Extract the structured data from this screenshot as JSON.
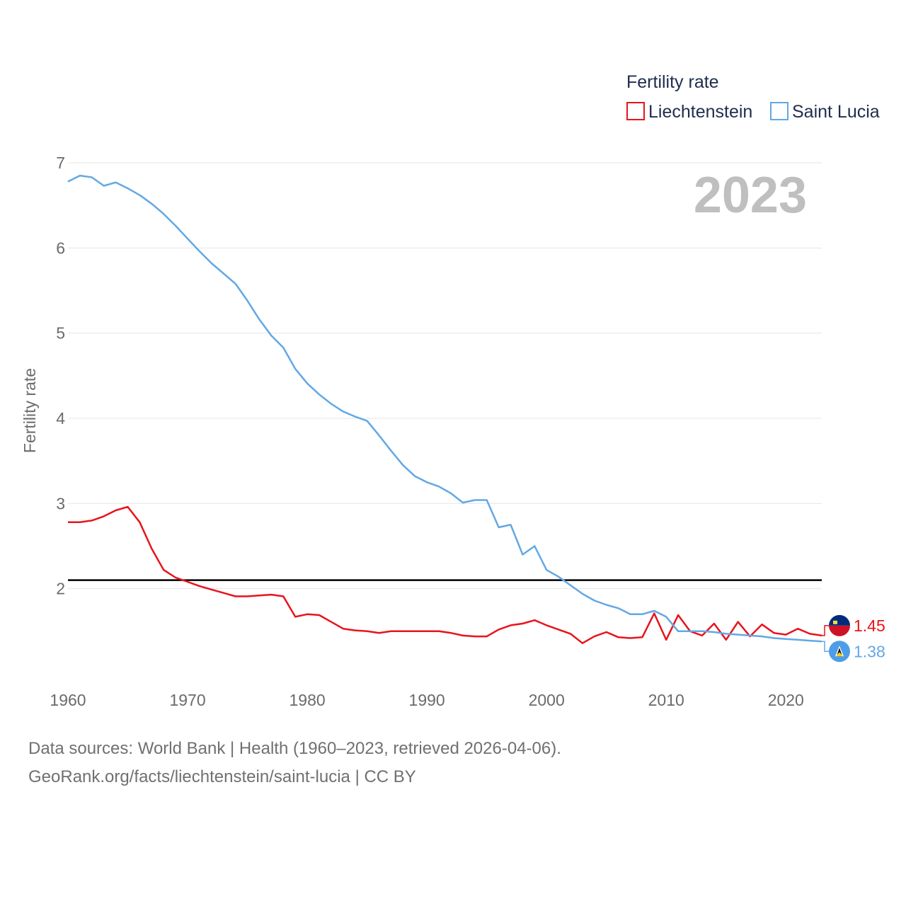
{
  "chart_data": {
    "type": "line",
    "title": "",
    "xlabel": "",
    "ylabel": "Fertility rate",
    "xlim": [
      1960,
      2023
    ],
    "ylim": [
      1.0,
      7.0
    ],
    "year_label": "2023",
    "legend": {
      "title": "Fertility rate",
      "entries": [
        {
          "name": "Liechtenstein",
          "color": "#e8141b"
        },
        {
          "name": "Saint Lucia",
          "color": "#62a8e5"
        }
      ],
      "placement": "top-right"
    },
    "x_ticks": [
      1960,
      1970,
      1980,
      1990,
      2000,
      2010,
      2020
    ],
    "x_tick_labels": [
      "1960",
      "1970",
      "1980",
      "1990",
      "2000",
      "2010",
      "2020"
    ],
    "y_ticks": [
      2,
      3,
      4,
      5,
      6,
      7
    ],
    "y_tick_labels": [
      "2",
      "3",
      "4",
      "5",
      "6",
      "7"
    ],
    "reference_line": {
      "value": 2.1,
      "color": "#000000"
    },
    "x": [
      1960,
      1961,
      1962,
      1963,
      1964,
      1965,
      1966,
      1967,
      1968,
      1969,
      1970,
      1971,
      1972,
      1973,
      1974,
      1975,
      1976,
      1977,
      1978,
      1979,
      1980,
      1981,
      1982,
      1983,
      1984,
      1985,
      1986,
      1987,
      1988,
      1989,
      1990,
      1991,
      1992,
      1993,
      1994,
      1995,
      1996,
      1997,
      1998,
      1999,
      2000,
      2001,
      2002,
      2003,
      2004,
      2005,
      2006,
      2007,
      2008,
      2009,
      2010,
      2011,
      2012,
      2013,
      2014,
      2015,
      2016,
      2017,
      2018,
      2019,
      2020,
      2021,
      2022,
      2023
    ],
    "series": [
      {
        "name": "Liechtenstein",
        "color": "#e8141b",
        "end_label": "1.45",
        "values": [
          2.78,
          2.78,
          2.8,
          2.85,
          2.92,
          2.96,
          2.78,
          2.47,
          2.22,
          2.13,
          2.08,
          2.03,
          1.99,
          1.95,
          1.91,
          1.91,
          1.92,
          1.93,
          1.91,
          1.67,
          1.7,
          1.69,
          1.61,
          1.53,
          1.51,
          1.5,
          1.48,
          1.5,
          1.5,
          1.5,
          1.5,
          1.5,
          1.48,
          1.45,
          1.44,
          1.44,
          1.52,
          1.57,
          1.59,
          1.63,
          1.57,
          1.52,
          1.47,
          1.36,
          1.44,
          1.49,
          1.43,
          1.42,
          1.43,
          1.71,
          1.4,
          1.69,
          1.5,
          1.45,
          1.59,
          1.4,
          1.61,
          1.44,
          1.58,
          1.48,
          1.46,
          1.53,
          1.47,
          1.45
        ]
      },
      {
        "name": "Saint Lucia",
        "color": "#62a8e5",
        "end_label": "1.38",
        "values": [
          6.78,
          6.85,
          6.83,
          6.73,
          6.77,
          6.7,
          6.62,
          6.52,
          6.4,
          6.26,
          6.11,
          5.96,
          5.82,
          5.7,
          5.58,
          5.38,
          5.16,
          4.97,
          4.83,
          4.58,
          4.41,
          4.28,
          4.17,
          4.08,
          4.02,
          3.97,
          3.8,
          3.62,
          3.45,
          3.32,
          3.25,
          3.2,
          3.12,
          3.01,
          3.04,
          3.04,
          2.72,
          2.75,
          2.4,
          2.5,
          2.22,
          2.14,
          2.04,
          1.94,
          1.86,
          1.81,
          1.77,
          1.7,
          1.7,
          1.74,
          1.67,
          1.5,
          1.5,
          1.5,
          1.49,
          1.47,
          1.46,
          1.45,
          1.44,
          1.42,
          1.41,
          1.4,
          1.39,
          1.38
        ]
      }
    ]
  },
  "footer": {
    "line1": "Data sources: World Bank | Health (1960–2023, retrieved 2026-04-06).",
    "line2": "GeoRank.org/facts/liechtenstein/saint-lucia | CC BY"
  }
}
